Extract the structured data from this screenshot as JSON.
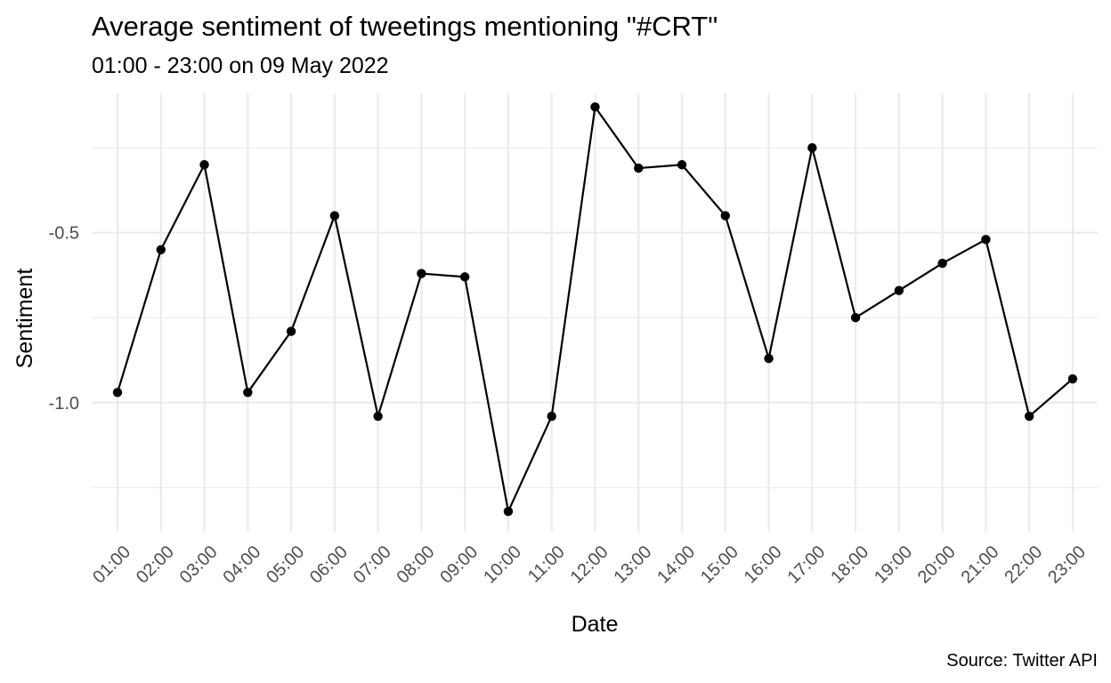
{
  "chart_data": {
    "type": "line",
    "title": "Average sentiment of tweetings mentioning \"#CRT\"",
    "subtitle": "01:00 - 23:00 on 09 May 2022",
    "xlabel": "Date",
    "ylabel": "Sentiment",
    "caption": "Source: Twitter API",
    "categories": [
      "01:00",
      "02:00",
      "03:00",
      "04:00",
      "05:00",
      "06:00",
      "07:00",
      "08:00",
      "09:00",
      "10:00",
      "11:00",
      "12:00",
      "13:00",
      "14:00",
      "15:00",
      "16:00",
      "17:00",
      "18:00",
      "19:00",
      "20:00",
      "21:00",
      "22:00",
      "23:00"
    ],
    "values": [
      -0.97,
      -0.55,
      -0.3,
      -0.97,
      -0.79,
      -0.45,
      -1.04,
      -0.62,
      -0.63,
      -1.32,
      -1.04,
      -0.13,
      -0.31,
      -0.3,
      -0.45,
      -0.87,
      -0.25,
      -0.75,
      -0.67,
      -0.59,
      -0.52,
      -1.04,
      -0.93
    ],
    "y_ticks": [
      -1.0,
      -0.5
    ],
    "y_tick_labels": [
      "-1.0",
      "-0.5"
    ],
    "y_minor_ticks": [
      -1.25,
      -0.75,
      -0.25
    ],
    "ylim": [
      -1.38,
      -0.09
    ],
    "grid": true,
    "line_color": "#000000",
    "point_color": "#000000",
    "grid_color": "#ebebeb"
  }
}
